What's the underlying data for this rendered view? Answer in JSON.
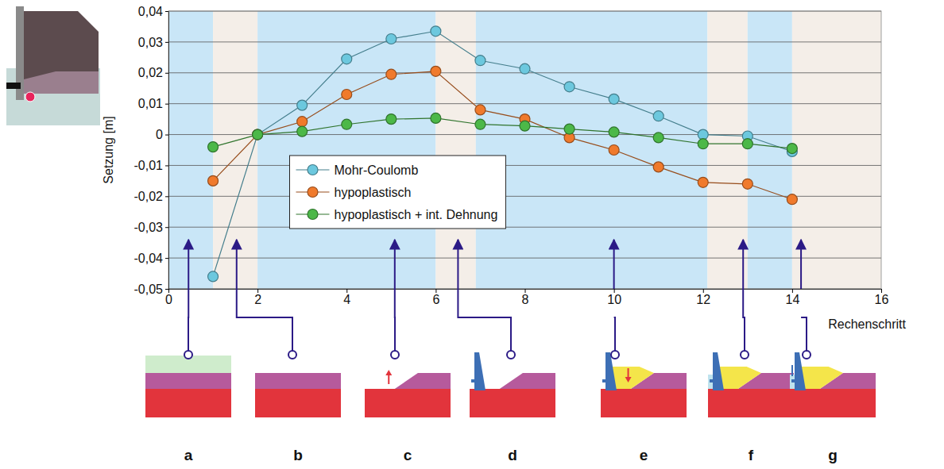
{
  "chart_data": {
    "type": "line",
    "x_label": "Rechenschritt",
    "y_label": "Setzung [m]",
    "x": [
      1,
      2,
      3,
      4,
      5,
      6,
      7,
      8,
      9,
      10,
      11,
      12,
      13,
      14
    ],
    "series": [
      {
        "name": "Mohr-Coulomb",
        "color": "#6cc8de",
        "values": [
          -0.046,
          0,
          0.0095,
          0.0245,
          0.031,
          0.0335,
          0.024,
          0.0213,
          0.0155,
          0.0115,
          0.006,
          0,
          -0.0005,
          -0.0055
        ]
      },
      {
        "name": "hypoplastisch",
        "color": "#f07a2c",
        "values": [
          -0.015,
          0,
          0.0042,
          0.013,
          0.0195,
          0.0205,
          0.008,
          0.005,
          -0.001,
          -0.005,
          -0.0105,
          -0.0155,
          -0.016,
          -0.021
        ]
      },
      {
        "name": "hypoplastisch + int. Dehnung",
        "color": "#4cb848",
        "values": [
          -0.004,
          0,
          0.001,
          0.0033,
          0.005,
          0.0053,
          0.0033,
          0.0028,
          0.0018,
          0.0008,
          -0.001,
          -0.003,
          -0.003,
          -0.0045
        ]
      }
    ],
    "xlim": [
      0,
      16
    ],
    "xticks": [
      0,
      2,
      4,
      6,
      8,
      10,
      12,
      14,
      16
    ],
    "ylim": [
      -0.05,
      0.04
    ],
    "yticks": [
      {
        "value": -0.05,
        "label": "-0,05"
      },
      {
        "value": -0.04,
        "label": "-0,04"
      },
      {
        "value": -0.03,
        "label": "-0,03"
      },
      {
        "value": -0.02,
        "label": "-0,02"
      },
      {
        "value": -0.01,
        "label": "-0,01"
      },
      0,
      {
        "value": 0.01,
        "label": "0,01"
      },
      {
        "value": 0.02,
        "label": "0,02"
      },
      {
        "value": 0.03,
        "label": "0,03"
      },
      {
        "value": 0.04,
        "label": "0,04"
      }
    ],
    "grid": true,
    "legend": "center",
    "marker": "circle",
    "line_style": "solid",
    "bands": [
      {
        "from": 0,
        "to": 1,
        "color": "#c9e6f7"
      },
      {
        "from": 1,
        "to": 2,
        "color": "#f4eee8"
      },
      {
        "from": 2,
        "to": 6,
        "color": "#c9e6f7"
      },
      {
        "from": 6,
        "to": 6.9,
        "color": "#f4eee8"
      },
      {
        "from": 6.9,
        "to": 12.1,
        "color": "#c9e6f7"
      },
      {
        "from": 12.1,
        "to": 13,
        "color": "#f4eee8"
      },
      {
        "from": 13,
        "to": 14,
        "color": "#c9e6f7"
      },
      {
        "from": 14,
        "to": 16,
        "color": "#f4eee8"
      }
    ],
    "annotations": [
      {
        "label": "a",
        "x": 0.45
      },
      {
        "label": "b",
        "x": 1.53
      },
      {
        "label": "c",
        "x": 5.08
      },
      {
        "label": "d",
        "x": 6.5
      },
      {
        "label": "e",
        "x": 10.0
      },
      {
        "label": "f",
        "x": 12.9
      },
      {
        "label": "g",
        "x": 14.2
      }
    ]
  }
}
